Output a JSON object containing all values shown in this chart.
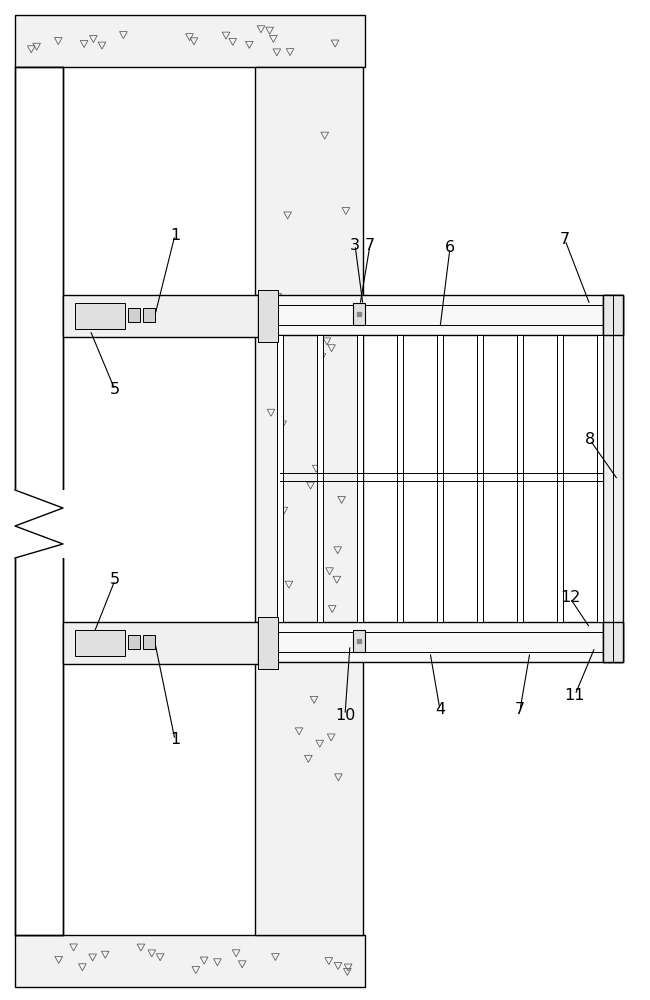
{
  "bg_color": "#ffffff",
  "line_color": "#000000",
  "fig_width": 6.5,
  "fig_height": 10.0
}
